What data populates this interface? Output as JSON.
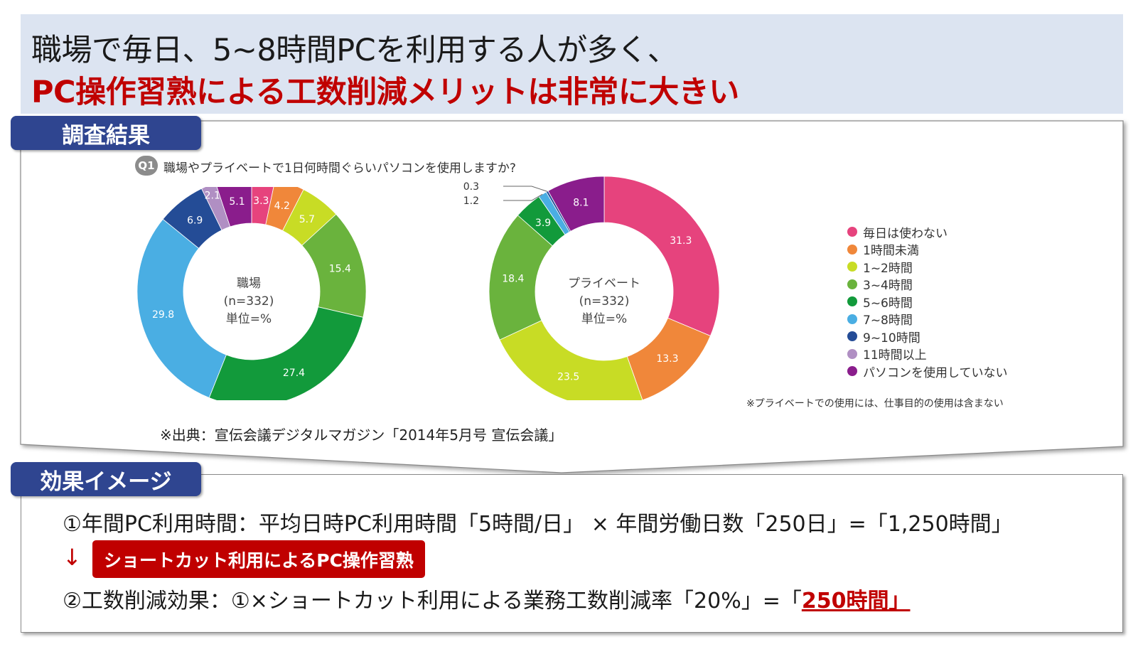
{
  "title": {
    "line1": "職場で毎日、5~8時間PCを利用する人が多く、",
    "line2": "PC操作習熟による工数削減メリットは非常に大きい"
  },
  "sections": {
    "survey_label": "調査結果",
    "effect_label": "効果イメージ"
  },
  "question": {
    "badge": "Q1",
    "text": "職場やプライベートで1日何時間ぐらいパソコンを使用しますか?"
  },
  "legend": [
    "毎日は使わない",
    "1時間未満",
    "1~2時間",
    "3~4時間",
    "5~6時間",
    "7~8時間",
    "9~10時間",
    "11時間以上",
    "パソコンを使用していない"
  ],
  "colors": {
    "series": [
      "#e6437d",
      "#f0873a",
      "#c8dc25",
      "#6ab33d",
      "#129a3b",
      "#4aaee3",
      "#244c96",
      "#b08fc3",
      "#8a1d8c"
    ],
    "title_band": "#dce4f1",
    "section_tab": "#2f4590",
    "accent_red": "#c00000"
  },
  "chart_data": [
    {
      "type": "pie",
      "center_label": [
        "職場",
        "(n=332)",
        "単位=%"
      ],
      "categories": [
        "毎日は使わない",
        "1時間未満",
        "1~2時間",
        "3~4時間",
        "5~6時間",
        "7~8時間",
        "9~10時間",
        "11時間以上",
        "パソコンを使用していない"
      ],
      "values": [
        3.3,
        4.2,
        5.7,
        15.4,
        27.4,
        29.8,
        6.9,
        2.1,
        5.1
      ]
    },
    {
      "type": "pie",
      "center_label": [
        "プライベート",
        "(n=332)",
        "単位=%"
      ],
      "categories": [
        "毎日は使わない",
        "1時間未満",
        "1~2時間",
        "3~4時間",
        "5~6時間",
        "7~8時間",
        "9~10時間",
        "11時間以上",
        "パソコンを使用していない"
      ],
      "values": [
        31.3,
        13.3,
        23.5,
        18.4,
        3.9,
        1.2,
        0.3,
        0,
        8.1
      ],
      "callouts": [
        "0.3",
        "1.2"
      ]
    }
  ],
  "note": "※プライベートでの使用には、仕事目的の使用は含まない",
  "source": "※出典：宣伝会議デジタルマガジン「2014年5月号 宣伝会議」",
  "effect": {
    "calc1": "①年間PC利用時間：平均日時PC利用時間「5時間/日」 × 年間労働日数「250日」=「1,250時間」",
    "arrow": "↓",
    "badge": "ショートカット利用によるPC操作習熟",
    "calc2_prefix": "②工数削減効果：①×ショートカット利用による業務工数削減率「20%」=「",
    "calc2_result": "250時間",
    "calc2_suffix": "」"
  }
}
